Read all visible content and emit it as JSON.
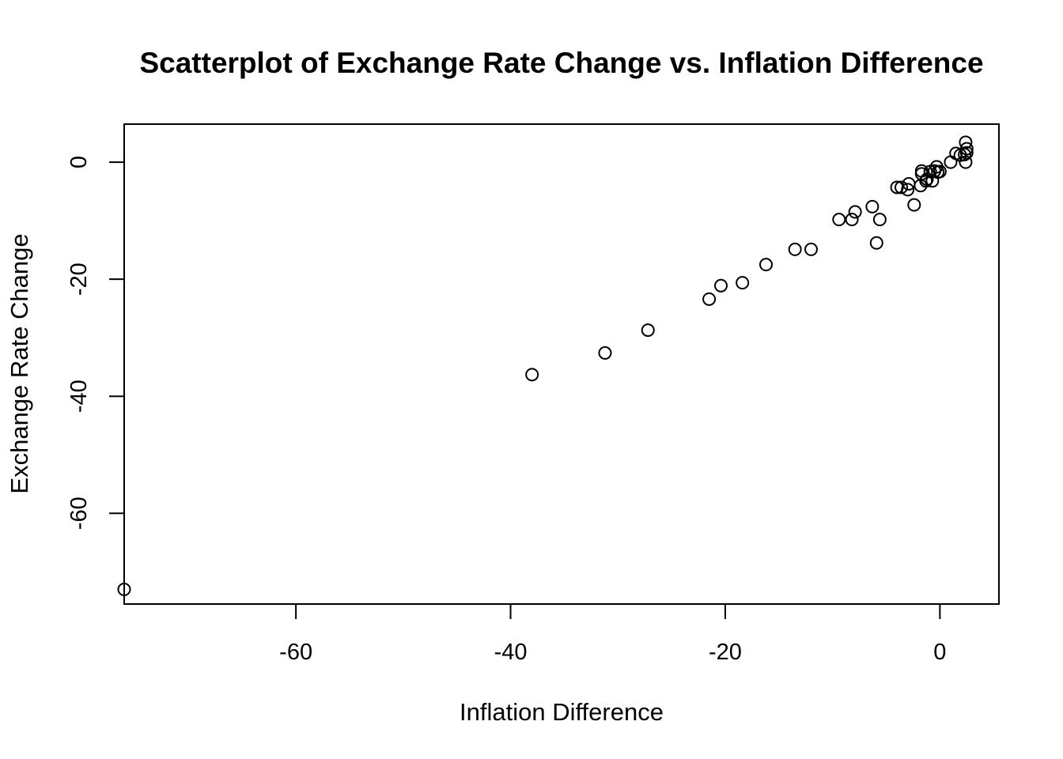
{
  "chart_data": {
    "type": "scatter",
    "title": "Scatterplot of Exchange Rate Change vs. Inflation Difference",
    "xlabel": "Inflation Difference",
    "ylabel": "Exchange Rate Change",
    "xlim": [
      -76,
      5.5
    ],
    "ylim": [
      -75.5,
      6.5
    ],
    "x_ticks": [
      -60,
      -40,
      -20,
      0
    ],
    "x_tick_labels": [
      "-60",
      "-40",
      "-20",
      "0"
    ],
    "y_ticks": [
      0,
      -20,
      -40,
      -60
    ],
    "y_tick_labels": [
      "0",
      "-20",
      "-40",
      "-60"
    ],
    "grid": false,
    "legend": "none",
    "point_style": "open-circle",
    "color": "#000000",
    "points": [
      {
        "x": -76.0,
        "y": -73.0
      },
      {
        "x": -38.0,
        "y": -36.3
      },
      {
        "x": -31.2,
        "y": -32.6
      },
      {
        "x": -27.2,
        "y": -28.7
      },
      {
        "x": -21.5,
        "y": -23.4
      },
      {
        "x": -20.4,
        "y": -21.1
      },
      {
        "x": -18.4,
        "y": -20.6
      },
      {
        "x": -16.2,
        "y": -17.5
      },
      {
        "x": -13.5,
        "y": -14.9
      },
      {
        "x": -12.0,
        "y": -14.9
      },
      {
        "x": -9.4,
        "y": -9.8
      },
      {
        "x": -8.2,
        "y": -9.8
      },
      {
        "x": -7.9,
        "y": -8.5
      },
      {
        "x": -6.3,
        "y": -7.6
      },
      {
        "x": -5.9,
        "y": -13.8
      },
      {
        "x": -5.6,
        "y": -9.8
      },
      {
        "x": -4.0,
        "y": -4.3
      },
      {
        "x": -3.6,
        "y": -4.3
      },
      {
        "x": -3.0,
        "y": -4.7
      },
      {
        "x": -2.9,
        "y": -3.7
      },
      {
        "x": -2.4,
        "y": -7.3
      },
      {
        "x": -1.8,
        "y": -4.0
      },
      {
        "x": -1.7,
        "y": -1.5
      },
      {
        "x": -1.7,
        "y": -2.0
      },
      {
        "x": -1.3,
        "y": -3.2
      },
      {
        "x": -1.2,
        "y": -2.9
      },
      {
        "x": -0.9,
        "y": -1.6
      },
      {
        "x": -0.7,
        "y": -3.2
      },
      {
        "x": -0.5,
        "y": -1.5
      },
      {
        "x": -0.3,
        "y": -0.8
      },
      {
        "x": -0.2,
        "y": -1.7
      },
      {
        "x": 0.0,
        "y": -1.6
      },
      {
        "x": 1.0,
        "y": 0.0
      },
      {
        "x": 1.5,
        "y": 1.5
      },
      {
        "x": 1.9,
        "y": 1.2
      },
      {
        "x": 2.3,
        "y": 1.3
      },
      {
        "x": 2.4,
        "y": 0.0
      },
      {
        "x": 2.4,
        "y": 3.4
      },
      {
        "x": 2.5,
        "y": 2.3
      },
      {
        "x": 2.5,
        "y": 1.6
      }
    ]
  }
}
